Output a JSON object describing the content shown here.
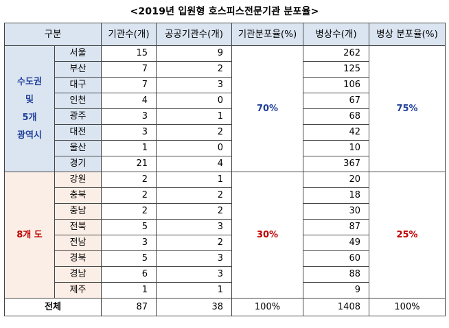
{
  "title": "<2019년 입원형 호스피스전문기관 분포율>",
  "headers": {
    "region": "구분",
    "institutions": "기관수(개)",
    "public_institutions": "공공기관수(개)",
    "inst_ratio": "기관분포율(%)",
    "beds": "병상수(개)",
    "bed_ratio": "병상 분포율(%)"
  },
  "groups": [
    {
      "label_lines": [
        "수도권",
        "및",
        "5개",
        "광역시"
      ],
      "inst_ratio": "70%",
      "bed_ratio": "75%",
      "rows": [
        {
          "city": "서울",
          "institutions": "15",
          "public": "9",
          "beds": "262"
        },
        {
          "city": "부산",
          "institutions": "7",
          "public": "2",
          "beds": "125"
        },
        {
          "city": "대구",
          "institutions": "7",
          "public": "3",
          "beds": "106"
        },
        {
          "city": "인천",
          "institutions": "4",
          "public": "0",
          "beds": "67"
        },
        {
          "city": "광주",
          "institutions": "3",
          "public": "1",
          "beds": "68"
        },
        {
          "city": "대전",
          "institutions": "3",
          "public": "2",
          "beds": "42"
        },
        {
          "city": "울산",
          "institutions": "1",
          "public": "0",
          "beds": "10"
        },
        {
          "city": "경기",
          "institutions": "21",
          "public": "4",
          "beds": "367"
        }
      ]
    },
    {
      "label_lines": [
        "8개 도"
      ],
      "inst_ratio": "30%",
      "bed_ratio": "25%",
      "rows": [
        {
          "city": "강원",
          "institutions": "2",
          "public": "1",
          "beds": "20"
        },
        {
          "city": "충북",
          "institutions": "2",
          "public": "2",
          "beds": "18"
        },
        {
          "city": "충남",
          "institutions": "2",
          "public": "2",
          "beds": "30"
        },
        {
          "city": "전북",
          "institutions": "5",
          "public": "3",
          "beds": "87"
        },
        {
          "city": "전남",
          "institutions": "3",
          "public": "2",
          "beds": "49"
        },
        {
          "city": "경북",
          "institutions": "5",
          "public": "3",
          "beds": "60"
        },
        {
          "city": "경남",
          "institutions": "6",
          "public": "3",
          "beds": "88"
        },
        {
          "city": "제주",
          "institutions": "1",
          "public": "1",
          "beds": "9"
        }
      ]
    }
  ],
  "total": {
    "label": "전체",
    "institutions": "87",
    "public": "38",
    "inst_ratio": "100%",
    "beds": "1408",
    "bed_ratio": "100%"
  }
}
